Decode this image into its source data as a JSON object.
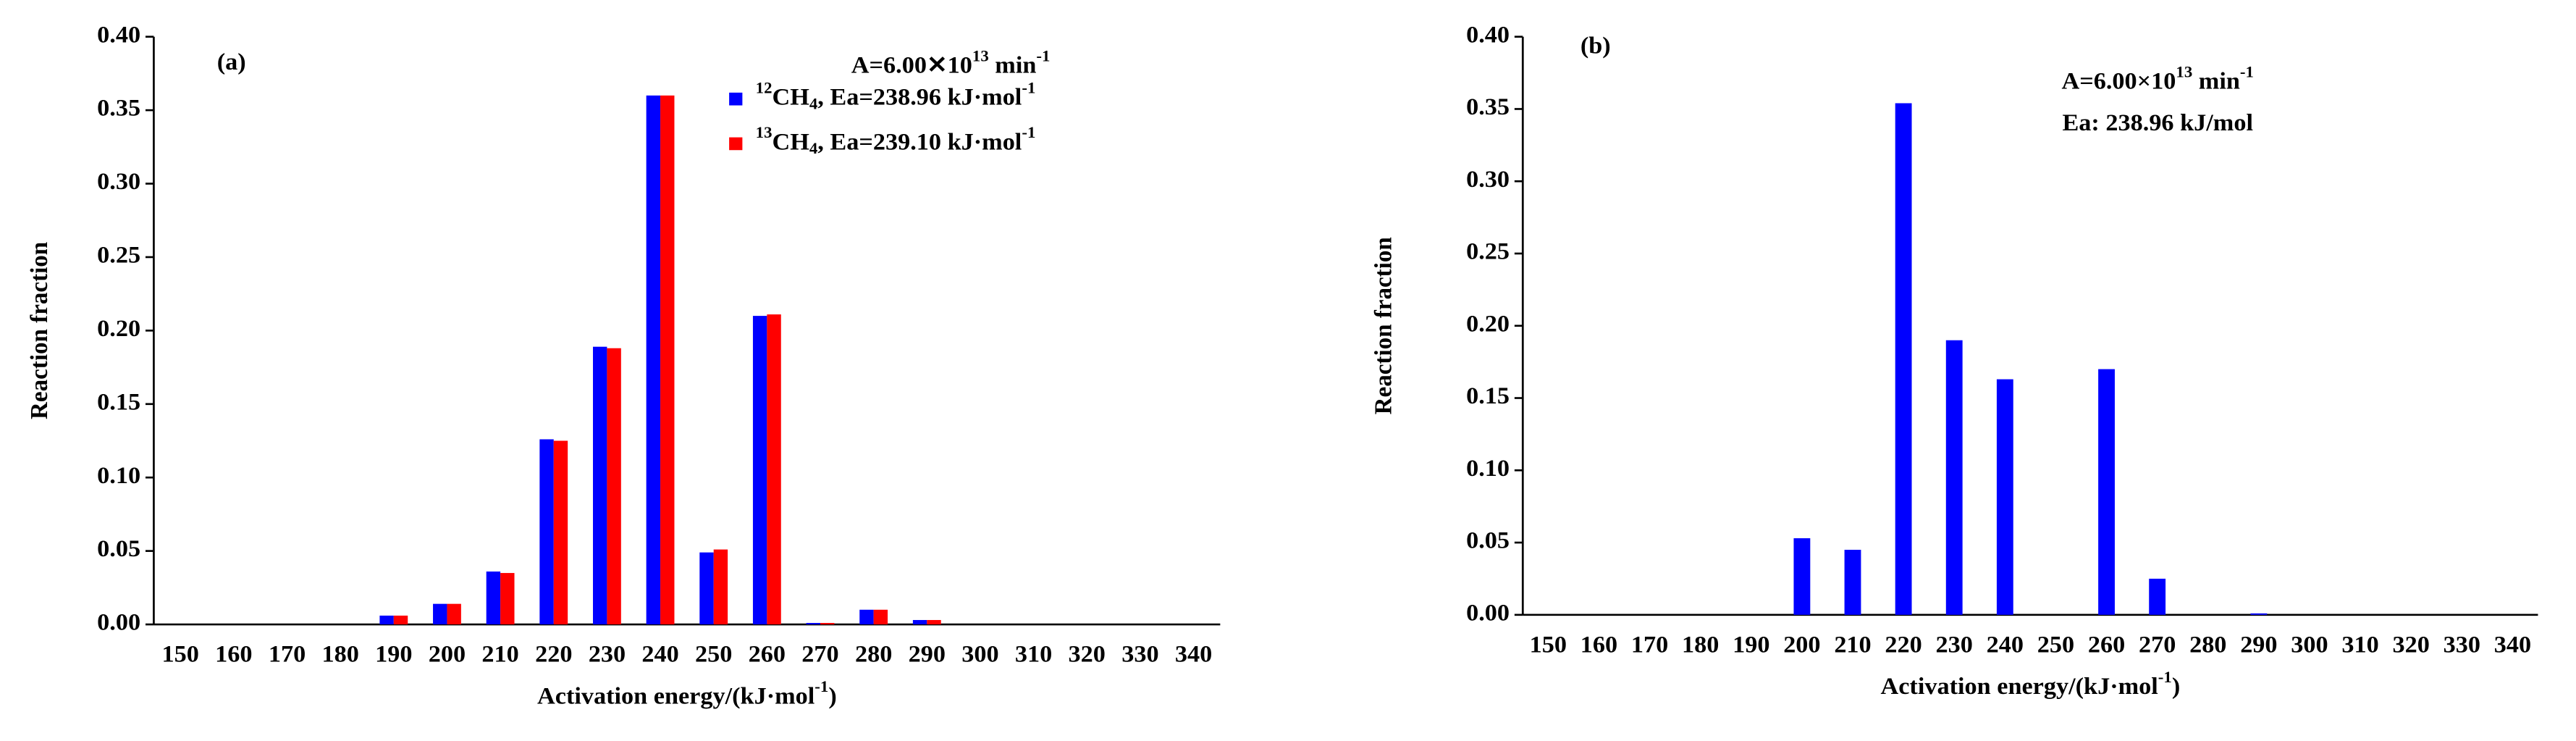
{
  "chart_data": [
    {
      "type": "bar",
      "title": "(a)",
      "annotations": [
        [
          {
            "t": "A=6.00✕10"
          },
          {
            "t": "13",
            "s": "sup"
          },
          {
            "t": " min"
          },
          {
            "t": "-1",
            "s": "sup"
          }
        ]
      ],
      "categories": [
        150,
        160,
        170,
        180,
        190,
        200,
        210,
        220,
        230,
        240,
        250,
        260,
        270,
        280,
        290,
        300,
        310,
        320,
        330,
        340
      ],
      "series": [
        {
          "name": [
            {
              "t": "12",
              "s": "sup"
            },
            {
              "t": "CH"
            },
            {
              "t": "4",
              "s": "sub"
            },
            {
              "t": ",  Ea=238.96 kJ·mol"
            },
            {
              "t": "-1",
              "s": "sup"
            }
          ],
          "color": "#0000FF",
          "values": [
            0,
            0,
            0,
            0,
            0.006,
            0.014,
            0.036,
            0.126,
            0.189,
            0.36,
            0.049,
            0.21,
            0.001,
            0.01,
            0.003,
            0,
            0,
            0,
            0,
            0
          ]
        },
        {
          "name": [
            {
              "t": "13",
              "s": "sup"
            },
            {
              "t": "CH"
            },
            {
              "t": "4",
              "s": "sub"
            },
            {
              "t": ",  Ea=239.10 kJ·mol"
            },
            {
              "t": "-1",
              "s": "sup"
            }
          ],
          "color": "#FF0000",
          "values": [
            0,
            0,
            0,
            0,
            0.006,
            0.014,
            0.035,
            0.125,
            0.188,
            0.36,
            0.051,
            0.211,
            0.001,
            0.01,
            0.003,
            0,
            0,
            0,
            0,
            0
          ]
        }
      ],
      "legend": true,
      "x_label": [
        {
          "t": "Activation energy/(kJ·mol"
        },
        {
          "t": "-1",
          "s": "sup"
        },
        {
          "t": ")"
        }
      ],
      "y_label": "Reaction fraction",
      "ylim": [
        0,
        0.4
      ],
      "yticks": [
        {
          "value": 0,
          "label": "0.00"
        },
        {
          "value": 0.05,
          "label": "0.05"
        },
        {
          "value": 0.1,
          "label": "0.10"
        },
        {
          "value": 0.15,
          "label": "0.15"
        },
        {
          "value": 0.2,
          "label": "0.20"
        },
        {
          "value": 0.25,
          "label": "0.25"
        },
        {
          "value": 0.3,
          "label": "0.30"
        },
        {
          "value": 0.35,
          "label": "0.35"
        },
        {
          "value": 0.4,
          "label": "0.40"
        }
      ]
    },
    {
      "type": "bar",
      "title": "(b)",
      "annotations": [
        [
          {
            "t": "A=6.00×10"
          },
          {
            "t": "13",
            "s": "sup"
          },
          {
            "t": " min"
          },
          {
            "t": "-1",
            "s": "sup"
          }
        ],
        [
          {
            "t": "Ea: 238.96 kJ/mol"
          }
        ]
      ],
      "categories": [
        150,
        160,
        170,
        180,
        190,
        200,
        210,
        220,
        230,
        240,
        250,
        260,
        270,
        280,
        290,
        300,
        310,
        320,
        330,
        340
      ],
      "series": [
        {
          "color": "#0000FF",
          "values": [
            0,
            0,
            0,
            0,
            0,
            0.053,
            0.045,
            0.354,
            0.19,
            0.163,
            0,
            0.17,
            0.025,
            0,
            0.001,
            0,
            0,
            0,
            0,
            0
          ]
        }
      ],
      "legend": false,
      "x_label": [
        {
          "t": "Activation energy/(kJ·mol"
        },
        {
          "t": "-1",
          "s": "sup"
        },
        {
          "t": ")"
        }
      ],
      "y_label": "Reaction fraction",
      "ylim": [
        0,
        0.4
      ],
      "yticks": [
        {
          "value": 0,
          "label": "0.00"
        },
        {
          "value": 0.05,
          "label": "0.05"
        },
        {
          "value": 0.1,
          "label": "0.10"
        },
        {
          "value": 0.15,
          "label": "0.15"
        },
        {
          "value": 0.2,
          "label": "0.20"
        },
        {
          "value": 0.25,
          "label": "0.25"
        },
        {
          "value": 0.3,
          "label": "0.30"
        },
        {
          "value": 0.35,
          "label": "0.35"
        },
        {
          "value": 0.4,
          "label": "0.40"
        }
      ]
    }
  ]
}
